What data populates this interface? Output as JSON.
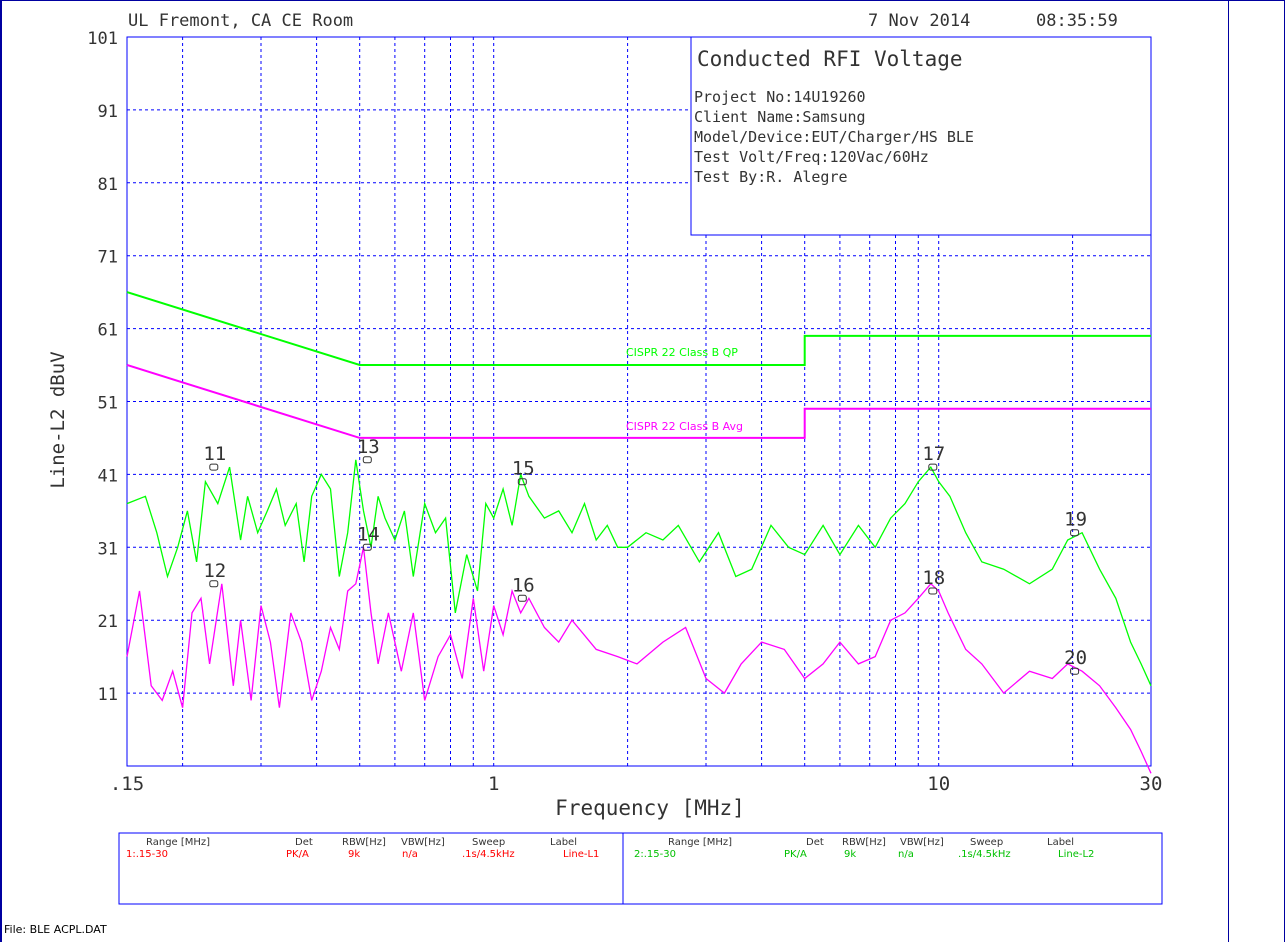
{
  "header": {
    "site": "UL Fremont, CA CE Room",
    "date": "7 Nov 2014",
    "time": "08:35:59"
  },
  "info_box": {
    "title": "Conducted RFI Voltage",
    "lines": [
      "Project No:14U19260",
      "Client Name:Samsung",
      "Model/Device:EUT/Charger/HS  BLE",
      "Test Volt/Freq:120Vac/60Hz",
      "Test By:R. Alegre"
    ]
  },
  "colors": {
    "frame": "#0000a0",
    "grid": "#0000ff",
    "trace_peak": "#00ff00",
    "trace_avg": "#ff00ff",
    "limit_qp": "#00ff00",
    "limit_avg": "#ff00ff",
    "text": "#333333",
    "range_red": "#ff0000",
    "range_green": "#00c000"
  },
  "chart_data": {
    "type": "line",
    "title": "Conducted RFI Voltage",
    "xlabel": "Frequency [MHz]",
    "ylabel": "Line-L2 dBuV",
    "xscale": "log",
    "xlim": [
      0.15,
      30
    ],
    "ylim": [
      1,
      101
    ],
    "grid": true,
    "y_ticks": [
      "101",
      "91",
      "81",
      "71",
      "61",
      "51",
      "41",
      "31",
      "21",
      "11"
    ],
    "x_ticks": [
      ".15",
      "1",
      "10",
      "30"
    ],
    "x_tick_values": [
      0.15,
      1,
      10,
      30
    ],
    "limits": [
      {
        "name": "CISPR 22 Class B QP",
        "color": "#00ff00",
        "points": [
          [
            0.15,
            66
          ],
          [
            0.5,
            56
          ],
          [
            5,
            56
          ],
          [
            5,
            60
          ],
          [
            30,
            60
          ]
        ]
      },
      {
        "name": "CISPR 22 Class B Avg",
        "color": "#ff00ff",
        "points": [
          [
            0.15,
            56
          ],
          [
            0.5,
            46
          ],
          [
            5,
            46
          ],
          [
            5,
            50
          ],
          [
            30,
            50
          ]
        ]
      }
    ],
    "series": [
      {
        "color": "#00ff00",
        "x": [
          0.15,
          0.165,
          0.175,
          0.185,
          0.195,
          0.205,
          0.215,
          0.225,
          0.24,
          0.255,
          0.27,
          0.28,
          0.295,
          0.31,
          0.325,
          0.34,
          0.36,
          0.375,
          0.39,
          0.41,
          0.43,
          0.45,
          0.47,
          0.49,
          0.51,
          0.53,
          0.55,
          0.57,
          0.6,
          0.63,
          0.66,
          0.7,
          0.74,
          0.78,
          0.82,
          0.87,
          0.92,
          0.96,
          1.0,
          1.05,
          1.1,
          1.15,
          1.2,
          1.3,
          1.4,
          1.5,
          1.6,
          1.7,
          1.8,
          1.9,
          2.0,
          2.2,
          2.4,
          2.6,
          2.9,
          3.2,
          3.5,
          3.8,
          4.2,
          4.6,
          5.0,
          5.5,
          6.0,
          6.6,
          7.2,
          7.8,
          8.4,
          9.0,
          9.6,
          10.0,
          10.6,
          11.5,
          12.5,
          14,
          16,
          18,
          19.5,
          21,
          23,
          25,
          27,
          28.5,
          30
        ],
        "y": [
          37,
          38,
          33,
          27,
          31,
          36,
          29,
          40,
          37,
          42,
          32,
          38,
          33,
          36,
          39,
          34,
          37,
          29,
          38,
          41,
          39,
          27,
          33,
          43,
          36,
          31,
          38,
          35,
          32,
          36,
          27,
          37,
          33,
          35,
          22,
          30,
          25,
          37,
          35,
          39,
          34,
          41,
          38,
          35,
          36,
          33,
          37,
          32,
          34,
          31,
          31,
          33,
          32,
          34,
          29,
          33,
          27,
          28,
          34,
          31,
          30,
          34,
          30,
          34,
          31,
          35,
          37,
          40,
          42,
          40,
          38,
          33,
          29,
          28,
          26,
          28,
          32,
          33,
          28,
          24,
          18,
          15,
          12
        ]
      },
      {
        "color": "#ff00ff",
        "x": [
          0.15,
          0.16,
          0.17,
          0.18,
          0.19,
          0.2,
          0.21,
          0.22,
          0.23,
          0.245,
          0.26,
          0.27,
          0.285,
          0.3,
          0.315,
          0.33,
          0.35,
          0.37,
          0.39,
          0.41,
          0.43,
          0.45,
          0.47,
          0.49,
          0.51,
          0.53,
          0.55,
          0.58,
          0.62,
          0.66,
          0.7,
          0.75,
          0.8,
          0.85,
          0.9,
          0.95,
          1.0,
          1.05,
          1.1,
          1.15,
          1.2,
          1.3,
          1.4,
          1.5,
          1.7,
          1.9,
          2.1,
          2.4,
          2.7,
          3.0,
          3.3,
          3.6,
          4.0,
          4.5,
          5.0,
          5.5,
          6.0,
          6.6,
          7.2,
          7.8,
          8.4,
          9.0,
          9.6,
          10.0,
          10.5,
          11.5,
          12.5,
          14,
          16,
          18,
          19.5,
          21,
          23,
          25,
          27,
          28.5,
          30
        ],
        "y": [
          16,
          25,
          12,
          10,
          14,
          9,
          22,
          24,
          15,
          26,
          12,
          21,
          10,
          23,
          18,
          9,
          22,
          18,
          10,
          14,
          20,
          17,
          25,
          26,
          31,
          22,
          15,
          22,
          14,
          22,
          10,
          16,
          19,
          13,
          24,
          14,
          23,
          19,
          25,
          22,
          24,
          20,
          18,
          21,
          17,
          16,
          15,
          18,
          20,
          13,
          11,
          15,
          18,
          17,
          13,
          15,
          18,
          15,
          16,
          21,
          22,
          24,
          26,
          25,
          22,
          17,
          15,
          11,
          14,
          13,
          15,
          14,
          12,
          9,
          6,
          3,
          0
        ]
      }
    ],
    "markers": [
      {
        "label": "11",
        "x": 0.235,
        "y": 42
      },
      {
        "label": "12",
        "x": 0.235,
        "y": 26
      },
      {
        "label": "13",
        "x": 0.52,
        "y": 43
      },
      {
        "label": "14",
        "x": 0.52,
        "y": 31
      },
      {
        "label": "15",
        "x": 1.16,
        "y": 40
      },
      {
        "label": "16",
        "x": 1.16,
        "y": 24
      },
      {
        "label": "17",
        "x": 9.7,
        "y": 42
      },
      {
        "label": "18",
        "x": 9.7,
        "y": 25
      },
      {
        "label": "19",
        "x": 20.2,
        "y": 33
      },
      {
        "label": "20",
        "x": 20.2,
        "y": 14
      }
    ],
    "annotations": [
      {
        "text": "CISPR 22 Class B QP",
        "color": "#00ff00"
      },
      {
        "text": "CISPR 22 Class B Avg",
        "color": "#ff00ff"
      }
    ]
  },
  "range_table": {
    "headers": [
      "Range [MHz]",
      "Det",
      "RBW[Hz]",
      "VBW[Hz]",
      "Sweep",
      "Label"
    ],
    "rows": [
      {
        "range": "1:.15-30",
        "det": "PK/A",
        "rbw": "9k",
        "vbw": "n/a",
        "sweep": ".1s/4.5kHz",
        "label": "Line-L1"
      },
      {
        "range": "2:.15-30",
        "det": "PK/A",
        "rbw": "9k",
        "vbw": "n/a",
        "sweep": ".1s/4.5kHz",
        "label": "Line-L2"
      }
    ]
  },
  "footer": {
    "file": "File: BLE ACPL.DAT"
  }
}
